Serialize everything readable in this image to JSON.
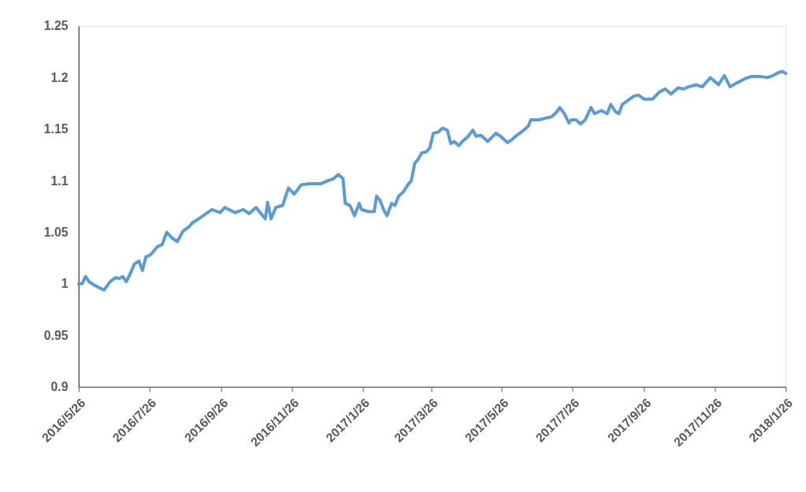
{
  "chart_data": {
    "type": "line",
    "x": [
      "2016-05-26",
      "2016-05-29",
      "2016-06-01",
      "2016-06-04",
      "2016-06-08",
      "2016-06-13",
      "2016-06-17",
      "2016-06-22",
      "2016-06-27",
      "2016-06-30",
      "2016-07-03",
      "2016-07-06",
      "2016-07-10",
      "2016-07-13",
      "2016-07-17",
      "2016-07-20",
      "2016-07-23",
      "2016-07-27",
      "2016-07-30",
      "2016-08-02",
      "2016-08-06",
      "2016-08-10",
      "2016-08-14",
      "2016-08-19",
      "2016-08-24",
      "2016-08-29",
      "2016-09-01",
      "2016-09-08",
      "2016-09-13",
      "2016-09-18",
      "2016-09-25",
      "2016-09-29",
      "2016-10-08",
      "2016-10-15",
      "2016-10-20",
      "2016-10-26",
      "2016-11-03",
      "2016-11-05",
      "2016-11-08",
      "2016-11-12",
      "2016-11-18",
      "2016-11-23",
      "2016-11-28",
      "2016-12-04",
      "2016-12-11",
      "2016-12-21",
      "2016-12-27",
      "2017-01-01",
      "2017-01-05",
      "2017-01-09",
      "2017-01-11",
      "2017-01-15",
      "2017-01-19",
      "2017-01-23",
      "2017-01-25",
      "2017-01-31",
      "2017-02-05",
      "2017-02-07",
      "2017-02-10",
      "2017-02-13",
      "2017-02-16",
      "2017-02-20",
      "2017-02-23",
      "2017-02-26",
      "2017-03-02",
      "2017-03-06",
      "2017-03-09",
      "2017-03-12",
      "2017-03-15",
      "2017-03-18",
      "2017-03-22",
      "2017-03-25",
      "2017-03-28",
      "2017-04-01",
      "2017-04-05",
      "2017-04-09",
      "2017-04-12",
      "2017-04-15",
      "2017-04-19",
      "2017-04-22",
      "2017-04-27",
      "2017-05-01",
      "2017-05-04",
      "2017-05-08",
      "2017-05-14",
      "2017-05-21",
      "2017-05-25",
      "2017-05-31",
      "2017-06-04",
      "2017-06-08",
      "2017-06-14",
      "2017-06-18",
      "2017-06-20",
      "2017-06-27",
      "2017-07-04",
      "2017-07-08",
      "2017-07-12",
      "2017-07-15",
      "2017-07-19",
      "2017-07-23",
      "2017-07-25",
      "2017-07-29",
      "2017-08-02",
      "2017-08-06",
      "2017-08-11",
      "2017-08-14",
      "2017-08-20",
      "2017-08-25",
      "2017-08-28",
      "2017-09-01",
      "2017-09-04",
      "2017-09-07",
      "2017-09-12",
      "2017-09-17",
      "2017-09-21",
      "2017-09-26",
      "2017-10-03",
      "2017-10-09",
      "2017-10-14",
      "2017-10-19",
      "2017-10-25",
      "2017-10-30",
      "2017-11-03",
      "2017-11-10",
      "2017-11-15",
      "2017-11-22",
      "2017-11-25",
      "2017-11-29",
      "2017-12-04",
      "2017-12-09",
      "2017-12-15",
      "2017-12-22",
      "2017-12-27",
      "2017-12-31",
      "2018-01-05",
      "2018-01-10",
      "2018-01-15",
      "2018-01-20",
      "2018-01-23",
      "2018-01-26"
    ],
    "series": [
      {
        "color": "#5b9bd5",
        "values": [
          1.0,
          1.0,
          1.007,
          1.002,
          0.999,
          0.996,
          0.994,
          1.002,
          1.006,
          1.005,
          1.007,
          1.002,
          1.011,
          1.019,
          1.022,
          1.013,
          1.026,
          1.028,
          1.032,
          1.036,
          1.038,
          1.05,
          1.045,
          1.041,
          1.051,
          1.055,
          1.059,
          1.064,
          1.068,
          1.072,
          1.069,
          1.074,
          1.069,
          1.072,
          1.068,
          1.074,
          1.063,
          1.079,
          1.063,
          1.074,
          1.076,
          1.093,
          1.087,
          1.096,
          1.097,
          1.097,
          1.1,
          1.102,
          1.106,
          1.102,
          1.078,
          1.076,
          1.066,
          1.078,
          1.072,
          1.07,
          1.07,
          1.085,
          1.081,
          1.072,
          1.066,
          1.078,
          1.076,
          1.085,
          1.089,
          1.096,
          1.1,
          1.117,
          1.121,
          1.127,
          1.128,
          1.132,
          1.146,
          1.147,
          1.151,
          1.149,
          1.136,
          1.138,
          1.134,
          1.138,
          1.143,
          1.149,
          1.143,
          1.144,
          1.138,
          1.146,
          1.143,
          1.137,
          1.14,
          1.144,
          1.149,
          1.153,
          1.159,
          1.159,
          1.161,
          1.162,
          1.166,
          1.171,
          1.165,
          1.156,
          1.159,
          1.159,
          1.155,
          1.159,
          1.171,
          1.165,
          1.168,
          1.165,
          1.174,
          1.167,
          1.165,
          1.174,
          1.178,
          1.182,
          1.183,
          1.179,
          1.179,
          1.186,
          1.189,
          1.184,
          1.19,
          1.189,
          1.191,
          1.193,
          1.191,
          1.2,
          1.197,
          1.193,
          1.202,
          1.191,
          1.195,
          1.199,
          1.201,
          1.201,
          1.201,
          1.2,
          1.202,
          1.205,
          1.206,
          1.204
        ]
      }
    ],
    "xlim": [
      "2016-05-26",
      "2018-01-26"
    ],
    "xticks": [
      {
        "value": "2016-05-26",
        "label": "2016/5/26"
      },
      {
        "value": "2016-07-26",
        "label": "2016/7/26"
      },
      {
        "value": "2016-09-26",
        "label": "2016/9/26"
      },
      {
        "value": "2016-11-26",
        "label": "2016/11/26"
      },
      {
        "value": "2017-01-26",
        "label": "2017/1/26"
      },
      {
        "value": "2017-03-26",
        "label": "2017/3/26"
      },
      {
        "value": "2017-05-26",
        "label": "2017/5/26"
      },
      {
        "value": "2017-07-26",
        "label": "2017/7/26"
      },
      {
        "value": "2017-09-26",
        "label": "2017/9/26"
      },
      {
        "value": "2017-11-26",
        "label": "2017/11/26"
      },
      {
        "value": "2018-01-26",
        "label": "2018/1/26"
      }
    ],
    "ylim": [
      0.9,
      1.25
    ],
    "yticks": [
      0.9,
      0.95,
      1,
      1.05,
      1.1,
      1.15,
      1.2,
      1.25
    ],
    "grid": false,
    "marker": "none",
    "line_style": "solid"
  }
}
